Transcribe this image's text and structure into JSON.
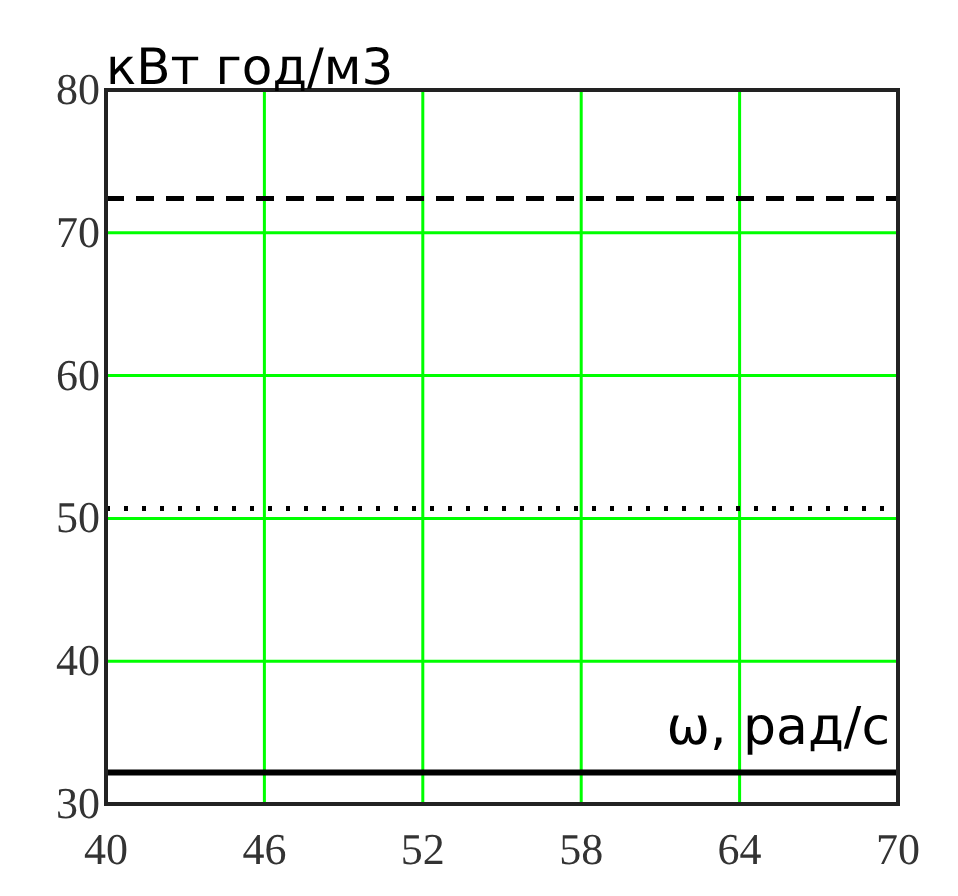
{
  "chart_data": {
    "type": "line",
    "xlabel": "ω, рад/с",
    "ylabel": "кВт год/м3",
    "x": [
      40,
      70
    ],
    "series": [
      {
        "color": "#000000",
        "line_style": "dashed",
        "values": [
          72.4,
          72.4
        ]
      },
      {
        "color": "#000000",
        "line_style": "dotted",
        "values": [
          50.7,
          50.7
        ]
      },
      {
        "color": "#000000",
        "line_style": "solid",
        "values": [
          32.2,
          32.2
        ]
      }
    ],
    "xlim": [
      40,
      70
    ],
    "ylim": [
      30,
      80
    ],
    "xticks": [
      40,
      46,
      52,
      58,
      64,
      70
    ],
    "yticks": [
      30,
      40,
      50,
      60,
      70,
      80
    ],
    "grid": true,
    "marker": "none"
  }
}
